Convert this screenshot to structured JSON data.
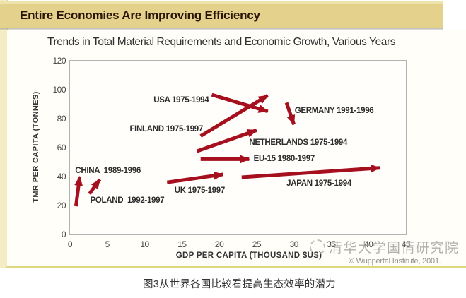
{
  "header": {
    "title": "Entire Economies Are Improving Efficiency"
  },
  "footer": {
    "watermark": "清华大学国情研究院",
    "credit": "© Wuppertal Institute, 2001.",
    "caption": "图3从世界各国比较看提高生态效率的潜力"
  },
  "chart_data": {
    "type": "scatter",
    "subtype": "trend-arrows",
    "title": "Trends in Total Material Requirements and Economic Growth, Various Years",
    "xlabel": "GDP PER CAPITA (THOUSAND $US)",
    "ylabel": "TMR PER CAPITA (TONNES)",
    "xlim": [
      0,
      45
    ],
    "ylim": [
      0,
      120
    ],
    "x_ticks": [
      0,
      5,
      10,
      15,
      20,
      25,
      30,
      35,
      40,
      45
    ],
    "y_ticks": [
      0,
      20,
      40,
      60,
      80,
      100,
      120
    ],
    "grid": false,
    "legend": false,
    "arrow_color": "#a60f1e",
    "series": [
      {
        "label": "CHINA  1989-1996",
        "start": [
          0.8,
          19.5
        ],
        "end": [
          1.3,
          40
        ],
        "label_pos": [
          0.7,
          43.9
        ]
      },
      {
        "label": "POLAND  1992-1997",
        "start": [
          2.6,
          28
        ],
        "end": [
          4.0,
          38
        ],
        "label_pos": [
          2.7,
          23.4
        ]
      },
      {
        "label": "UK 1975-1997",
        "start": [
          13.0,
          36
        ],
        "end": [
          20.5,
          41.5
        ],
        "label_pos": [
          14.0,
          30.2
        ]
      },
      {
        "label": "JAPAN 1975-1994",
        "start": [
          23.0,
          39.5
        ],
        "end": [
          41.5,
          46
        ],
        "label_pos": [
          29.0,
          34.9
        ]
      },
      {
        "label": "EU-15 1980-1997",
        "start": [
          17.5,
          52
        ],
        "end": [
          24.0,
          52
        ],
        "label_pos": [
          24.6,
          52.2
        ]
      },
      {
        "label": "NETHERLANDS 1975-1994",
        "start": [
          17.0,
          57.5
        ],
        "end": [
          25.0,
          72
        ],
        "label_pos": [
          24.0,
          63.4
        ]
      },
      {
        "label": "FINLAND 1975-1997",
        "start": [
          17.5,
          68
        ],
        "end": [
          26.5,
          96
        ],
        "label_pos": [
          8.0,
          72.7
        ]
      },
      {
        "label": "USA 1975-1994",
        "start": [
          19.0,
          96.5
        ],
        "end": [
          26.5,
          85
        ],
        "label_pos": [
          11.2,
          92.7
        ]
      },
      {
        "label": "GERMANY 1991-1996",
        "start": [
          29.0,
          91
        ],
        "end": [
          30.0,
          76
        ],
        "label_pos": [
          30.1,
          85.4
        ]
      }
    ]
  }
}
